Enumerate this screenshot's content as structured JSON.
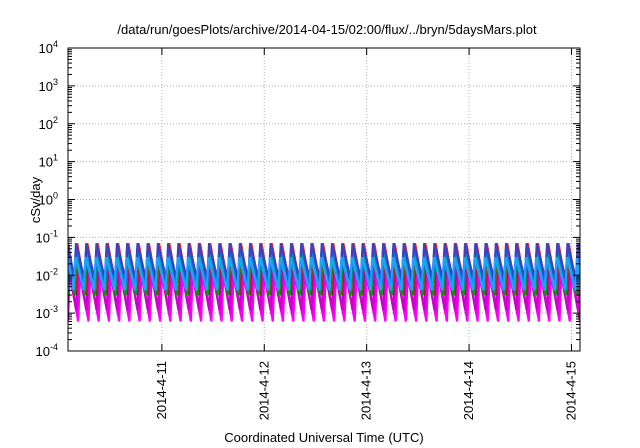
{
  "chart_data": {
    "type": "line",
    "title": "/data/run/goesPlots/archive/2014-04-15/02:00/flux/../bryn/5daysMars.plot",
    "xlabel": "Coordinated Universal Time (UTC)",
    "ylabel": "cSv/day",
    "x_range": [
      "2014-04-10T02:00",
      "2014-04-15T02:00"
    ],
    "x_ticks": [
      "2014-4-11",
      "2014-4-12",
      "2014-4-13",
      "2014-4-14",
      "2014-4-15"
    ],
    "y_scale": "log",
    "ylim": [
      0.0001,
      10000
    ],
    "y_ticks": [
      {
        "base": "10",
        "exp": "-4"
      },
      {
        "base": "10",
        "exp": "-3"
      },
      {
        "base": "10",
        "exp": "-2"
      },
      {
        "base": "10",
        "exp": "-1"
      },
      {
        "base": "10",
        "exp": "0"
      },
      {
        "base": "10",
        "exp": "1"
      },
      {
        "base": "10",
        "exp": "2"
      },
      {
        "base": "10",
        "exp": "3"
      },
      {
        "base": "10",
        "exp": "4"
      }
    ],
    "grid": true,
    "legend": "none",
    "sawtooth_period_hours": 2.4,
    "series": [
      {
        "color": "#ff00ff",
        "peak": 0.012,
        "trough": 0.0006,
        "phase_hours": 0.0
      },
      {
        "color": "#ee00ee",
        "peak": 0.016,
        "trough": 0.0009,
        "phase_hours": 0.25
      },
      {
        "color": "#cc00cc",
        "peak": 0.02,
        "trough": 0.0012,
        "phase_hours": 0.5
      },
      {
        "color": "#8b2222",
        "peak": 0.06,
        "trough": 0.003,
        "phase_hours": 0.6
      },
      {
        "color": "#ff2000",
        "peak": 0.07,
        "trough": 0.004,
        "phase_hours": 0.7
      },
      {
        "color": "#00a000",
        "peak": 0.05,
        "trough": 0.003,
        "phase_hours": 0.85
      },
      {
        "color": "#00b0a0",
        "peak": 0.045,
        "trough": 0.004,
        "phase_hours": 1.0
      },
      {
        "color": "#0060ff",
        "peak": 0.065,
        "trough": 0.006,
        "phase_hours": 0.9
      },
      {
        "color": "#4040c0",
        "peak": 0.07,
        "trough": 0.008,
        "phase_hours": 0.95
      },
      {
        "color": "#20a0ff",
        "peak": 0.03,
        "trough": 0.004,
        "phase_hours": 1.1
      }
    ]
  }
}
